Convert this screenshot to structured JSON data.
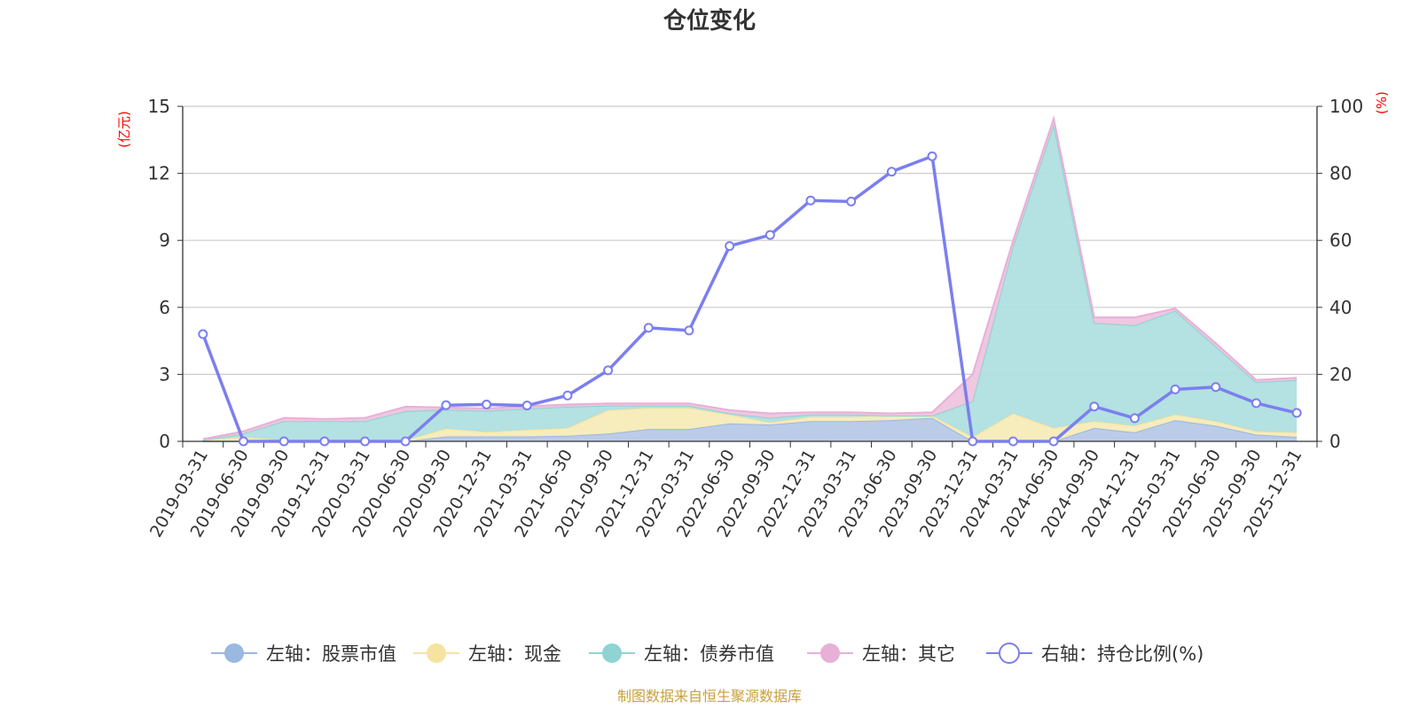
{
  "chart_data": {
    "type": "area",
    "title": "仓位变化",
    "left_axis_unit": "(亿元)",
    "right_axis_unit": "(%)",
    "source_note": "制图数据来自恒生聚源数据库",
    "left_ylim": [
      0,
      15
    ],
    "left_ticks": [
      "0",
      "3",
      "6",
      "9",
      "12",
      "15"
    ],
    "right_ylim": [
      0,
      100
    ],
    "right_ticks": [
      "0",
      "20",
      "40",
      "60",
      "80",
      "100"
    ],
    "grid": true,
    "legend_position": "bottom",
    "categories": [
      "2019-03-31",
      "2019-06-30",
      "2019-09-30",
      "2019-12-31",
      "2020-03-31",
      "2020-06-30",
      "2020-09-30",
      "2020-12-31",
      "2021-03-31",
      "2021-06-30",
      "2021-09-30",
      "2021-12-31",
      "2022-03-31",
      "2022-06-30",
      "2022-09-30",
      "2022-12-31",
      "2023-03-31",
      "2023-06-30",
      "2023-09-30",
      "2023-12-31",
      "2024-03-31",
      "2024-06-30",
      "2024-09-30",
      "2024-12-31",
      "2025-03-31",
      "2025-06-30",
      "2025-09-30",
      "2025-12-31"
    ],
    "stacked_series": [
      {
        "name": "左轴：股票市值",
        "axis": "left",
        "color": "#9ab8e0",
        "fill": "#b7c9e8",
        "values": [
          0,
          0,
          0,
          0,
          0,
          0,
          0.22,
          0.22,
          0.22,
          0.25,
          0.35,
          0.55,
          0.55,
          0.8,
          0.75,
          0.9,
          0.9,
          0.95,
          1.05,
          0,
          0,
          0,
          0.6,
          0.4,
          0.95,
          0.7,
          0.3,
          0.2
        ]
      },
      {
        "name": "左轴：现金",
        "axis": "left",
        "color": "#f5e3a0",
        "fill": "#f7ebb8",
        "values": [
          0.05,
          0.2,
          0.05,
          0.05,
          0.05,
          0.05,
          0.35,
          0.2,
          0.3,
          0.35,
          1.05,
          0.95,
          0.95,
          0.4,
          0.1,
          0.2,
          0.2,
          0.2,
          0.1,
          0.2,
          1.25,
          0.6,
          0.3,
          0.3,
          0.25,
          0.2,
          0.15,
          0.2
        ]
      },
      {
        "name": "左轴：债券市值",
        "axis": "left",
        "color": "#8fd3d3",
        "fill": "#b0dfdf",
        "values": [
          0,
          0.15,
          0.85,
          0.85,
          0.85,
          1.3,
          0.85,
          0.95,
          0.95,
          0.95,
          0.2,
          0.1,
          0.1,
          0.05,
          0.2,
          0.1,
          0.1,
          0,
          0,
          1.6,
          7.5,
          13.6,
          4.4,
          4.5,
          4.65,
          3.35,
          2.2,
          2.35
        ]
      },
      {
        "name": "左轴：其它",
        "axis": "left",
        "color": "#e8b0d6",
        "fill": "#eec4df",
        "values": [
          0.05,
          0.1,
          0.15,
          0.1,
          0.15,
          0.2,
          0.1,
          0.1,
          0.1,
          0.1,
          0.1,
          0.1,
          0.1,
          0.15,
          0.2,
          0.1,
          0.1,
          0.1,
          0.15,
          1.2,
          0.25,
          0.25,
          0.25,
          0.35,
          0.1,
          0.15,
          0.1,
          0.1
        ]
      }
    ],
    "line_series": {
      "name": "右轴：持仓比例(%)",
      "axis": "right",
      "color": "#7b7fef",
      "values": [
        32,
        0,
        0,
        0,
        0,
        0,
        10.8,
        11,
        10.7,
        13.7,
        21.2,
        33.9,
        33.1,
        58.3,
        61.6,
        71.9,
        71.6,
        80.5,
        85.1,
        0,
        0,
        0,
        10.4,
        6.9,
        15.5,
        16.2,
        11.4,
        8.5
      ]
    }
  }
}
